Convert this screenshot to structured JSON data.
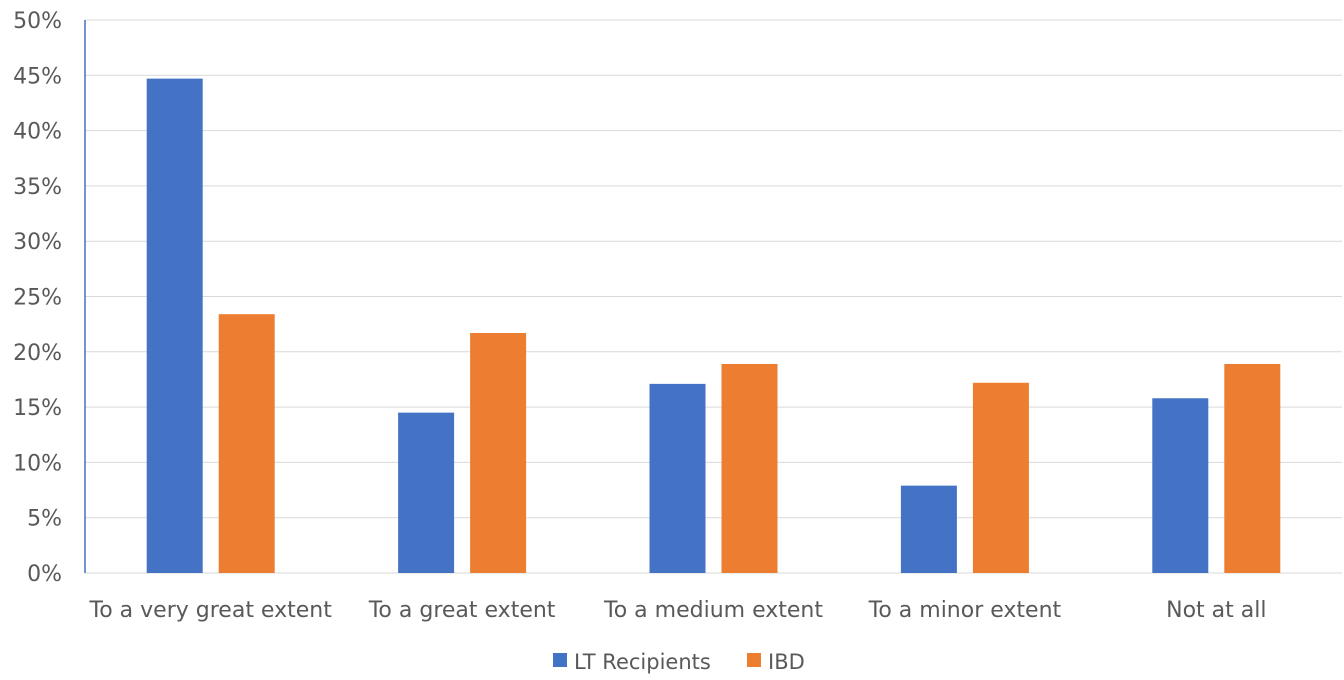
{
  "chart_data": {
    "type": "bar",
    "title": "",
    "xlabel": "",
    "ylabel": "",
    "categories": [
      "To a very great extent",
      "To a great extent",
      "To a medium extent",
      "To a minor extent",
      "Not at all"
    ],
    "series": [
      {
        "name": "LT Recipients",
        "color": "#4472C4",
        "values": [
          44.7,
          14.5,
          17.1,
          7.9,
          15.8
        ]
      },
      {
        "name": "IBD",
        "color": "#ED7D31",
        "values": [
          23.4,
          21.7,
          18.9,
          17.2,
          18.9
        ]
      }
    ],
    "ylim": [
      0,
      50
    ],
    "yticks": [
      "0%",
      "5%",
      "10%",
      "15%",
      "20%",
      "25%",
      "30%",
      "35%",
      "40%",
      "45%",
      "50%"
    ],
    "grid": true,
    "legend_position": "bottom"
  }
}
